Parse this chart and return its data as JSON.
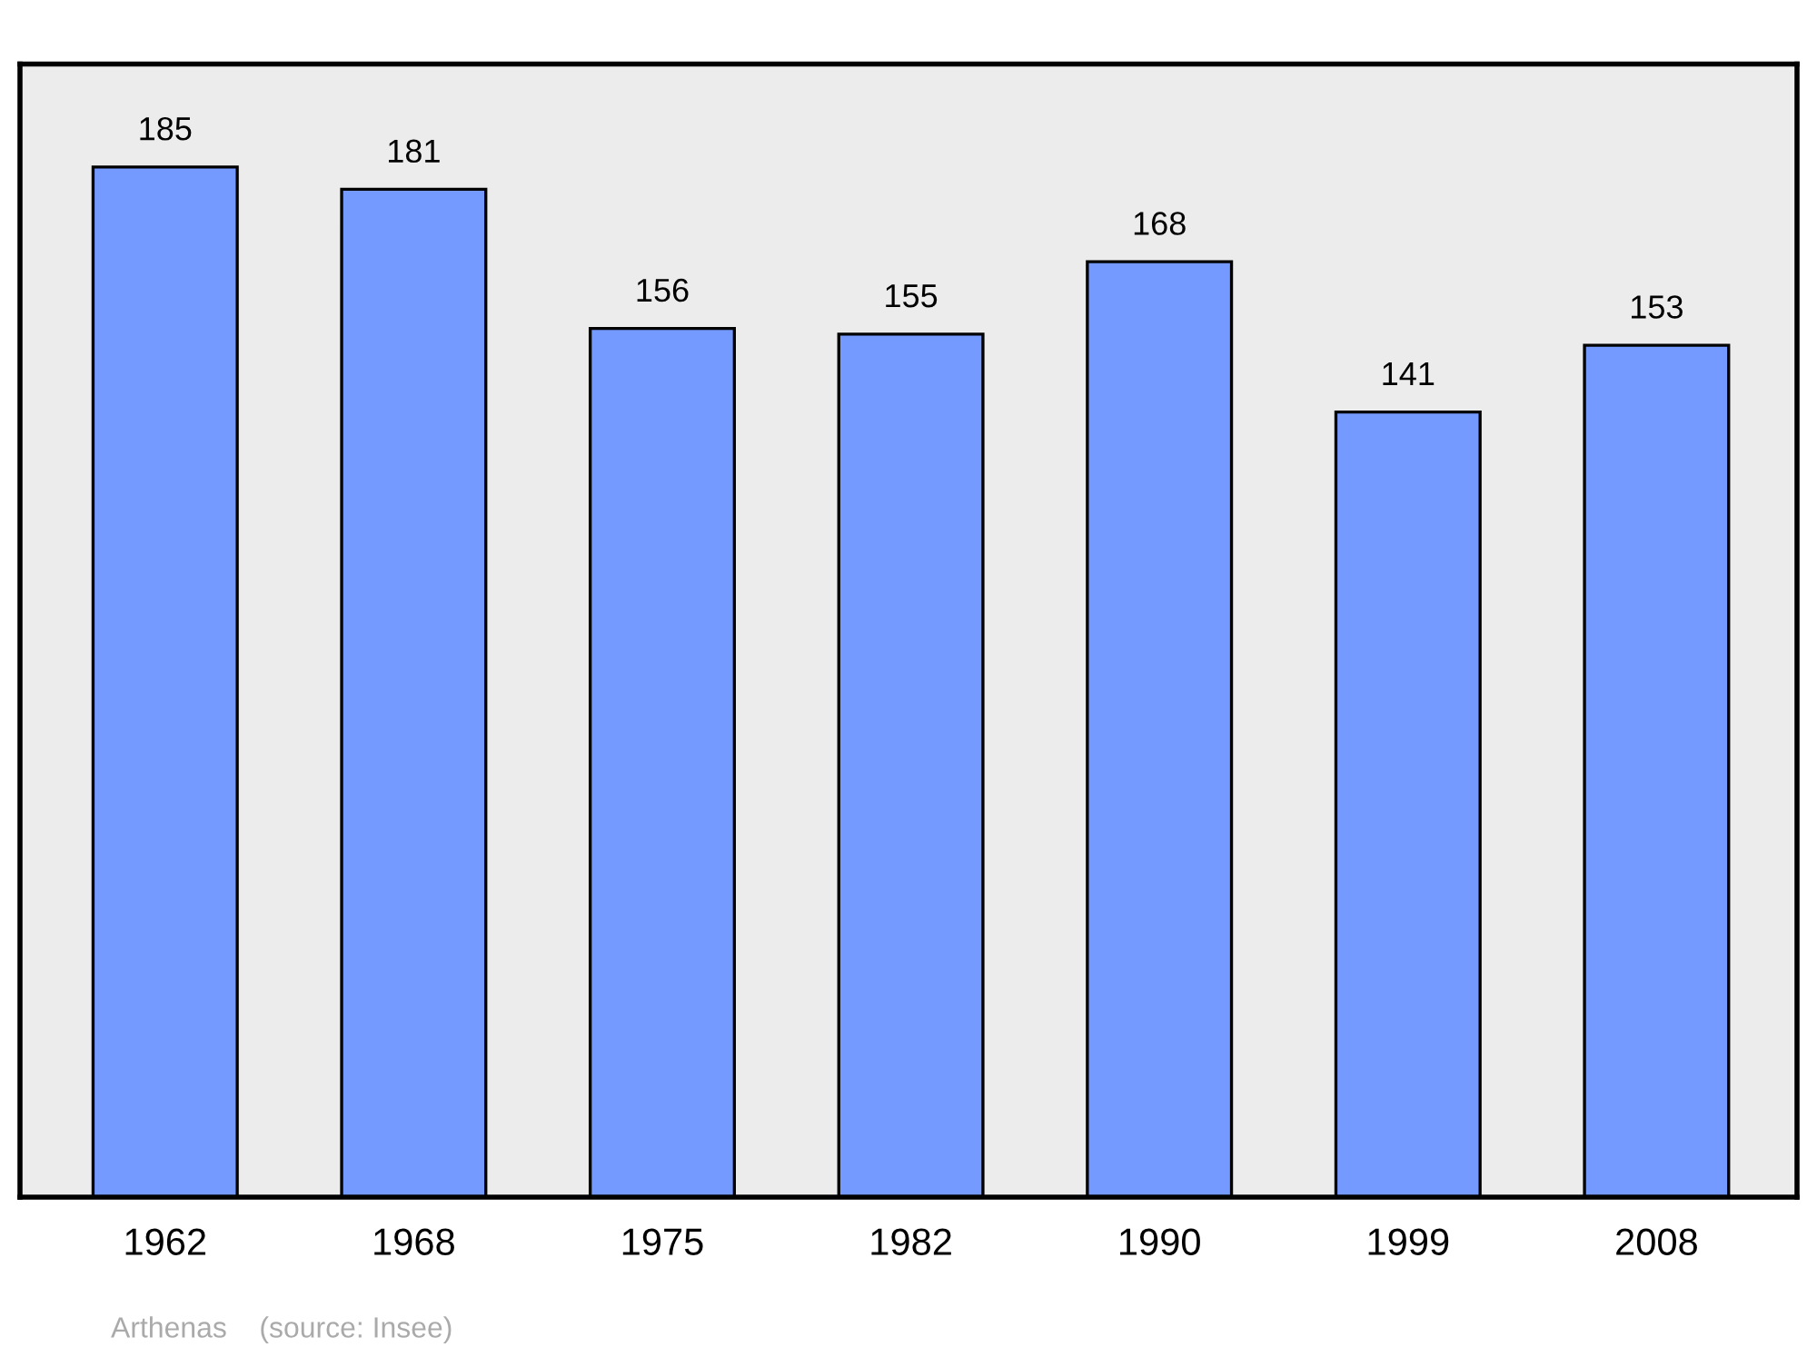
{
  "chart_data": {
    "type": "bar",
    "categories": [
      "1962",
      "1968",
      "1975",
      "1982",
      "1990",
      "1999",
      "2008"
    ],
    "values": [
      185,
      181,
      156,
      155,
      168,
      141,
      153
    ],
    "color": "#7499ff",
    "ylim": [
      0,
      203.5
    ],
    "data_labels": true,
    "grid": false,
    "legend": false,
    "tick_labels": "x",
    "annotations": [
      "Arthenas    (source: Insee)"
    ]
  }
}
